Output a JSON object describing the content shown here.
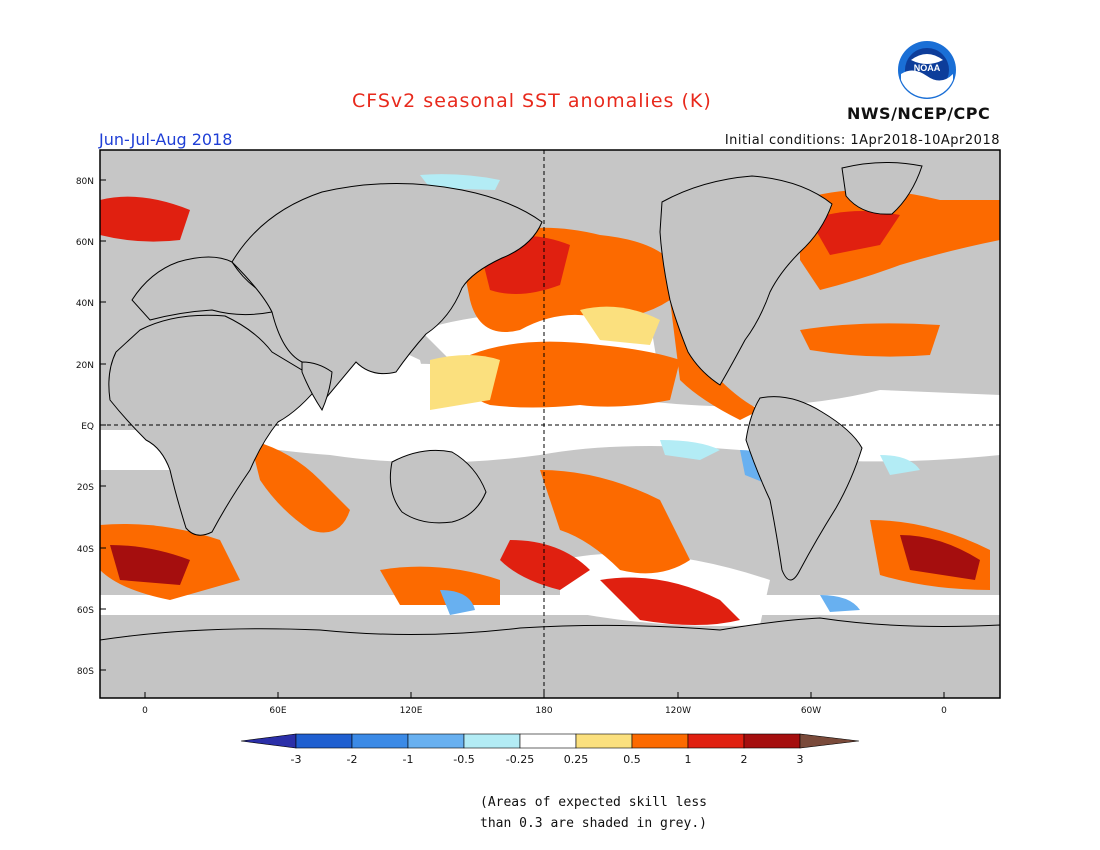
{
  "title": "CFSv2 seasonal SST anomalies (K)",
  "period": "Jun-Jul-Aug 2018",
  "initial_conditions": "Initial conditions: 1Apr2018-10Apr2018",
  "agency": "NWS/NCEP/CPC",
  "logo_text": "NOAA",
  "note_lines": [
    "(Areas of expected skill less",
    "than 0.3 are shaded in grey.)"
  ],
  "lat_labels": [
    "80N",
    "60N",
    "40N",
    "20N",
    "EQ",
    "20S",
    "40S",
    "60S",
    "80S"
  ],
  "lon_labels": [
    "0",
    "60E",
    "120E",
    "180",
    "120W",
    "60W",
    "0"
  ],
  "colorbar": {
    "labels": [
      "-3",
      "-2",
      "-1",
      "-0.5",
      "-0.25",
      "0.25",
      "0.5",
      "1",
      "2",
      "3"
    ],
    "colors": [
      "#2b2fa8",
      "#1f5fd0",
      "#3b8ae6",
      "#68b0f0",
      "#b3ecf5",
      "#ffffff",
      "#fbe07e",
      "#fc6a00",
      "#e02010",
      "#a50e0e",
      "#7a4a3a"
    ]
  },
  "colors": {
    "land": "#c4c4c4",
    "title": "#e8291c",
    "period": "#1f3fd6"
  }
}
